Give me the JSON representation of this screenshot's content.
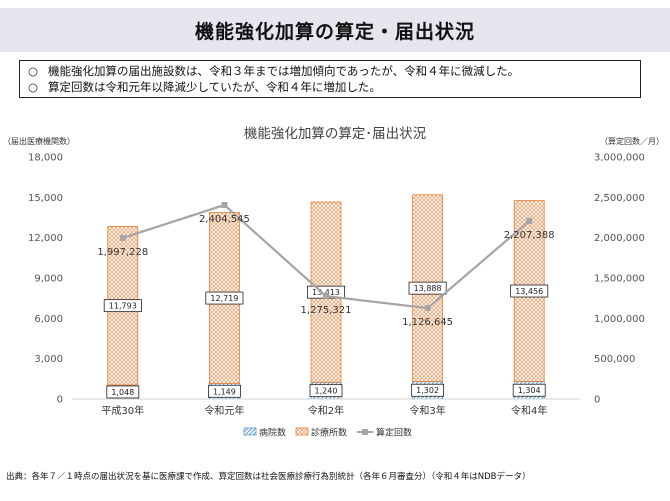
{
  "page": {
    "title": "機能強化加算の算定・届出状況",
    "summary": [
      {
        "mark": "○",
        "text": "機能強化加算の届出施設数は、令和３年までは増加傾向であったが、令和４年に微減した。"
      },
      {
        "mark": "○",
        "text": "算定回数は令和元年以降減少していたが、令和４年に増加した。"
      }
    ],
    "source": "出典：各年７／１時点の届出状況を基に医療課で作成、算定回数は社会医療診療行為別統計（各年６月審査分）（令和４年はNDBデータ）"
  },
  "chart_data": {
    "type": "bar",
    "stacked": true,
    "title": "機能強化加算の算定･届出状況",
    "ylabel_left": "（届出医療機関数）",
    "ylabel_right": "（算定回数／月）",
    "categories": [
      "平成30年",
      "令和元年",
      "令和2年",
      "令和3年",
      "令和4年"
    ],
    "ylim_left": [
      0,
      18000
    ],
    "yticks_left": [
      "0",
      "3,000",
      "6,000",
      "9,000",
      "12,000",
      "15,000",
      "18,000"
    ],
    "ylim_right": [
      0,
      3000000
    ],
    "yticks_right": [
      "0",
      "500,000",
      "1,000,000",
      "1,500,000",
      "2,000,000",
      "2,500,000",
      "3,000,000"
    ],
    "series": [
      {
        "name": "病院数",
        "kind": "bar",
        "axis": "left",
        "color": "#5b9bd5",
        "values": [
          1048,
          1149,
          1240,
          1302,
          1304
        ],
        "labels": [
          "1,048",
          "1,149",
          "1,240",
          "1,302",
          "1,304"
        ]
      },
      {
        "name": "診療所数",
        "kind": "bar",
        "axis": "left",
        "color": "#ed7d31",
        "values": [
          11793,
          12719,
          13413,
          13888,
          13456
        ],
        "labels": [
          "11,793",
          "12,719",
          "13,413",
          "13,888",
          "13,456"
        ]
      },
      {
        "name": "算定回数",
        "kind": "line",
        "axis": "right",
        "color": "#a5a5a5",
        "values": [
          1997228,
          2404545,
          1275321,
          1126645,
          2207388
        ],
        "labels": [
          "1,997,228",
          "2,404,545",
          "1,275,321",
          "1,126,645",
          "2,207,388"
        ]
      }
    ],
    "legend_position": "bottom",
    "grid": false
  }
}
